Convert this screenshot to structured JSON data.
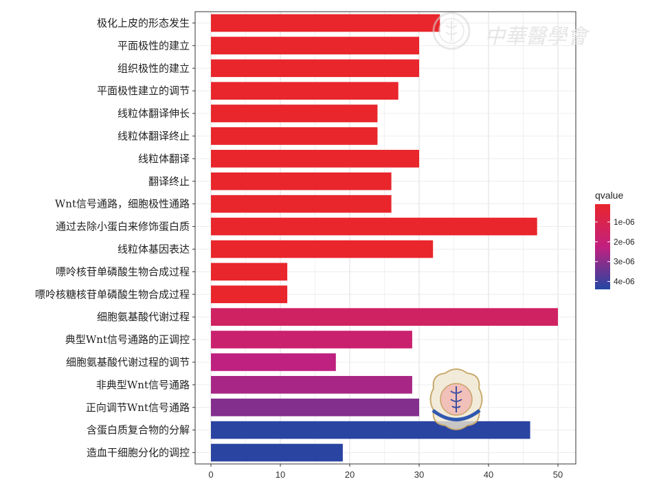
{
  "chart_data": {
    "type": "bar",
    "orientation": "horizontal",
    "categories": [
      "极化上皮的形态发生",
      "平面极性的建立",
      "组织极性的建立",
      "平面极性建立的调节",
      "线粒体翻译伸长",
      "线粒体翻译终止",
      "线粒体翻译",
      "翻译终止",
      "Wnt信号通路，细胞极性通路",
      "通过去除小蛋白来修饰蛋白质",
      "线粒体基因表达",
      "嘌呤核苷单磷酸生物合成过程",
      "嘌呤核糖核苷单磷酸生物合成过程",
      "细胞氨基酸代谢过程",
      "典型Wnt信号通路的正调控",
      "细胞氨基酸代谢过程的调节",
      "非典型Wnt信号通路",
      "正向调节Wnt信号通路",
      "含蛋白质复合物的分解",
      "造血干细胞分化的调控"
    ],
    "values": [
      33,
      30,
      30,
      27,
      24,
      24,
      30,
      26,
      26,
      47,
      32,
      11,
      11,
      50,
      29,
      18,
      29,
      30,
      46,
      19
    ],
    "qvalues": [
      1e-07,
      1e-07,
      1e-07,
      1e-07,
      1e-07,
      1e-07,
      1e-07,
      1e-07,
      1e-07,
      1e-07,
      1e-07,
      1e-07,
      1e-07,
      1.5e-06,
      1.8e-06,
      2.3e-06,
      2.6e-06,
      3.1e-06,
      4.3e-06,
      4.3e-06
    ],
    "xlim": [
      0,
      52
    ],
    "xticks": [
      "0",
      "10",
      "20",
      "30",
      "40",
      "50"
    ],
    "xtick_values": [
      0,
      10,
      20,
      30,
      40,
      50
    ],
    "grid": true,
    "legend": {
      "title": "qvalue",
      "position": "right",
      "ticks": [
        "1e-06",
        "2e-06",
        "3e-06",
        "4e-06"
      ],
      "tick_values": [
        1e-06,
        2e-06,
        3e-06,
        4e-06
      ],
      "range": [
        1e-07,
        4.4e-06
      ],
      "color_low": "#e8262c",
      "color_mid": "#c2207f",
      "color_high": "#2346a3"
    }
  },
  "watermark": {
    "text": "中華醫學會"
  }
}
